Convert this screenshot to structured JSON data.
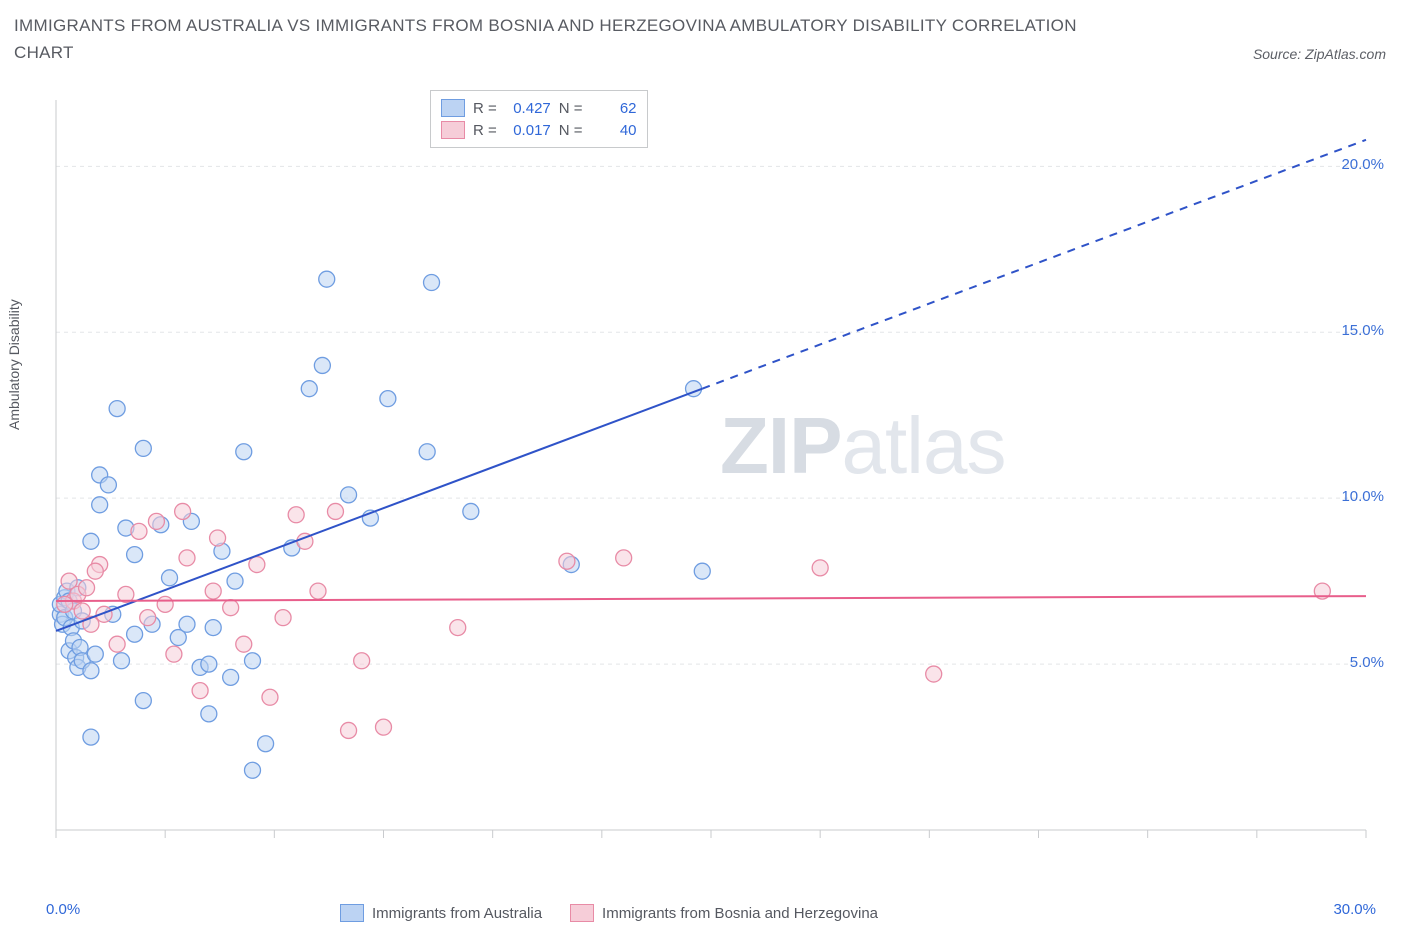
{
  "title": "IMMIGRANTS FROM AUSTRALIA VS IMMIGRANTS FROM BOSNIA AND HERZEGOVINA AMBULATORY DISABILITY CORRELATION CHART",
  "source_label": "Source: ZipAtlas.com",
  "y_axis_label": "Ambulatory Disability",
  "watermark": {
    "bold": "ZIP",
    "light": "atlas"
  },
  "chart": {
    "type": "scatter",
    "background_color": "#ffffff",
    "grid_color": "#e3e5e8",
    "axis_line_color": "#c9cbce",
    "xlim": [
      0,
      30
    ],
    "ylim": [
      0,
      22
    ],
    "xtick_positions": [
      0,
      2.5,
      5,
      7.5,
      10,
      12.5,
      15,
      17.5,
      20,
      22.5,
      25,
      27.5,
      30
    ],
    "ytick_positions": [
      5,
      10,
      15,
      20
    ],
    "ytick_labels": [
      "5.0%",
      "10.0%",
      "15.0%",
      "20.0%"
    ],
    "x_corner_left": "0.0%",
    "x_corner_right": "30.0%",
    "x_corner_color": "#2f67d8",
    "marker_radius": 8,
    "marker_opacity": 0.55,
    "series": [
      {
        "key": "australia",
        "label": "Immigrants from Australia",
        "fill": "#bcd3f3",
        "stroke": "#6f9de1",
        "trend": {
          "color": "#2f53c8",
          "width": 2,
          "x1": 0,
          "y1": 6.0,
          "x2_solid": 14.8,
          "y2_solid": 13.3,
          "x2_dash": 30,
          "y2_dash": 20.8
        },
        "stats": {
          "r_label": "R =",
          "r": "0.427",
          "n_label": "N =",
          "n": "62"
        },
        "points": [
          [
            0.1,
            6.5
          ],
          [
            0.1,
            6.8
          ],
          [
            0.15,
            6.2
          ],
          [
            0.2,
            7.0
          ],
          [
            0.2,
            6.4
          ],
          [
            0.25,
            7.2
          ],
          [
            0.3,
            5.4
          ],
          [
            0.3,
            6.9
          ],
          [
            0.35,
            6.1
          ],
          [
            0.4,
            5.7
          ],
          [
            0.4,
            6.6
          ],
          [
            0.45,
            5.2
          ],
          [
            0.5,
            4.9
          ],
          [
            0.5,
            7.3
          ],
          [
            0.55,
            5.5
          ],
          [
            0.6,
            6.3
          ],
          [
            0.6,
            5.1
          ],
          [
            0.8,
            8.7
          ],
          [
            0.8,
            4.8
          ],
          [
            0.9,
            5.3
          ],
          [
            1.0,
            9.8
          ],
          [
            1.0,
            10.7
          ],
          [
            1.2,
            10.4
          ],
          [
            1.4,
            12.7
          ],
          [
            1.3,
            6.5
          ],
          [
            1.5,
            5.1
          ],
          [
            1.6,
            9.1
          ],
          [
            1.8,
            8.3
          ],
          [
            2.0,
            11.5
          ],
          [
            1.8,
            5.9
          ],
          [
            2.2,
            6.2
          ],
          [
            2.4,
            9.2
          ],
          [
            2.6,
            7.6
          ],
          [
            2.8,
            5.8
          ],
          [
            2.0,
            3.9
          ],
          [
            3.0,
            6.2
          ],
          [
            3.1,
            9.3
          ],
          [
            3.3,
            4.9
          ],
          [
            3.5,
            5.0
          ],
          [
            3.6,
            6.1
          ],
          [
            3.8,
            8.4
          ],
          [
            3.5,
            3.5
          ],
          [
            4.0,
            4.6
          ],
          [
            4.1,
            7.5
          ],
          [
            4.3,
            11.4
          ],
          [
            4.5,
            5.1
          ],
          [
            4.8,
            2.6
          ],
          [
            4.5,
            1.8
          ],
          [
            5.4,
            8.5
          ],
          [
            5.8,
            13.3
          ],
          [
            6.1,
            14.0
          ],
          [
            6.2,
            16.6
          ],
          [
            6.7,
            10.1
          ],
          [
            7.2,
            9.4
          ],
          [
            7.6,
            13.0
          ],
          [
            8.6,
            16.5
          ],
          [
            8.5,
            11.4
          ],
          [
            9.5,
            9.6
          ],
          [
            11.8,
            8.0
          ],
          [
            14.6,
            13.3
          ],
          [
            14.8,
            7.8
          ],
          [
            0.8,
            2.8
          ]
        ]
      },
      {
        "key": "bosnia",
        "label": "Immigrants from Bosnia and Herzegovina",
        "fill": "#f6cdd8",
        "stroke": "#e88ba6",
        "trend": {
          "color": "#e85e8b",
          "width": 2,
          "x1": 0,
          "y1": 6.9,
          "x2_solid": 30,
          "y2_solid": 7.05,
          "x2_dash": 30,
          "y2_dash": 7.05
        },
        "stats": {
          "r_label": "R =",
          "r": "0.017",
          "n_label": "N =",
          "n": "40"
        },
        "points": [
          [
            0.3,
            7.5
          ],
          [
            0.4,
            6.9
          ],
          [
            0.5,
            7.1
          ],
          [
            0.6,
            6.6
          ],
          [
            0.7,
            7.3
          ],
          [
            0.8,
            6.2
          ],
          [
            1.0,
            8.0
          ],
          [
            1.1,
            6.5
          ],
          [
            1.4,
            5.6
          ],
          [
            1.6,
            7.1
          ],
          [
            1.9,
            9.0
          ],
          [
            2.1,
            6.4
          ],
          [
            2.3,
            9.3
          ],
          [
            2.5,
            6.8
          ],
          [
            2.7,
            5.3
          ],
          [
            2.9,
            9.6
          ],
          [
            3.0,
            8.2
          ],
          [
            3.3,
            4.2
          ],
          [
            3.6,
            7.2
          ],
          [
            3.7,
            8.8
          ],
          [
            4.0,
            6.7
          ],
          [
            4.3,
            5.6
          ],
          [
            4.6,
            8.0
          ],
          [
            4.9,
            4.0
          ],
          [
            5.2,
            6.4
          ],
          [
            5.5,
            9.5
          ],
          [
            5.7,
            8.7
          ],
          [
            6.0,
            7.2
          ],
          [
            6.4,
            9.6
          ],
          [
            6.7,
            3.0
          ],
          [
            7.0,
            5.1
          ],
          [
            7.5,
            3.1
          ],
          [
            9.2,
            6.1
          ],
          [
            11.7,
            8.1
          ],
          [
            13.0,
            8.2
          ],
          [
            17.5,
            7.9
          ],
          [
            20.1,
            4.7
          ],
          [
            29.0,
            7.2
          ],
          [
            0.2,
            6.8
          ],
          [
            0.9,
            7.8
          ]
        ]
      }
    ]
  },
  "legend_bottom": [
    {
      "label": "Immigrants from Australia",
      "fill": "#bcd3f3",
      "stroke": "#6f9de1"
    },
    {
      "label": "Immigrants from Bosnia and Herzegovina",
      "fill": "#f6cdd8",
      "stroke": "#e88ba6"
    }
  ]
}
